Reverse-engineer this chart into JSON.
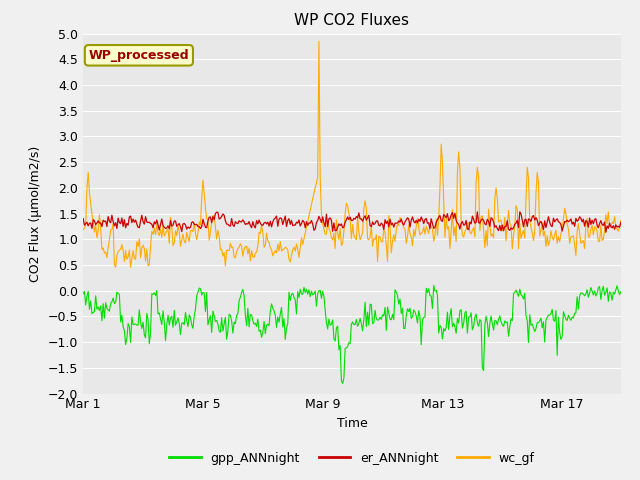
{
  "title": "WP CO2 Fluxes",
  "xlabel": "Time",
  "ylabel": "CO2 Flux (μmol/m2/s)",
  "ylim": [
    -2.0,
    5.0
  ],
  "yticks": [
    -2.0,
    -1.5,
    -1.0,
    -0.5,
    0.0,
    0.5,
    1.0,
    1.5,
    2.0,
    2.5,
    3.0,
    3.5,
    4.0,
    4.5,
    5.0
  ],
  "xtick_labels": [
    "Mar 1",
    "Mar 5",
    "Mar 9",
    "Mar 13",
    "Mar 17"
  ],
  "xtick_positions": [
    0,
    96,
    192,
    288,
    384
  ],
  "n_points": 432,
  "colors": {
    "gpp": "#00dd00",
    "er": "#cc0000",
    "wc": "#ffaa00"
  },
  "legend_labels": [
    "gpp_ANNnight",
    "er_ANNnight",
    "wc_gf"
  ],
  "annotation_text": "WP_processed",
  "annotation_color": "#990000",
  "annotation_bg": "#ffffcc",
  "annotation_border": "#999900",
  "background_color": "#e8e8e8",
  "grid_color": "#ffffff",
  "fig_bg": "#f0f0f0",
  "title_fontsize": 11,
  "label_fontsize": 9,
  "tick_fontsize": 9
}
